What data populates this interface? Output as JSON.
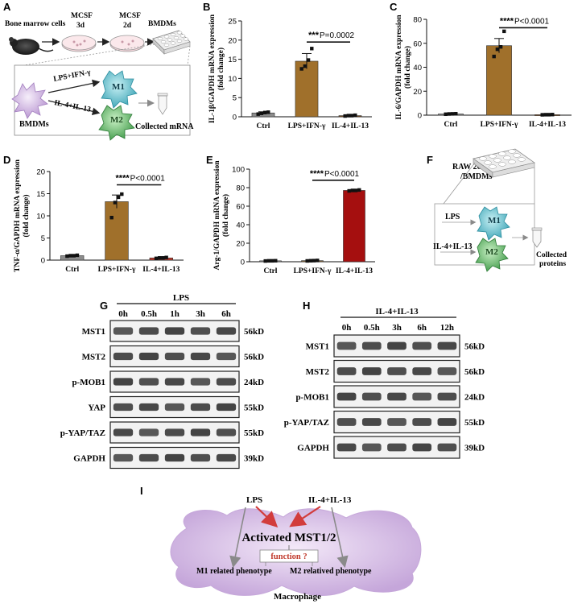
{
  "panel_letters": [
    "A",
    "B",
    "C",
    "D",
    "E",
    "F",
    "G",
    "H",
    "I"
  ],
  "panelA": {
    "bone_marrow_label": "Bone marrow cells",
    "mcsf1_top": "MCSF",
    "mcsf1_bottom": "3d",
    "mcsf2_top": "MCSF",
    "mcsf2_bottom": "2d",
    "bmdms_top": "BMDMs",
    "bmdms_side": "BMDMs",
    "lps_ifn": "LPS+IFN-γ",
    "il4_il13": "IL-4+IL-13",
    "m1": "M1",
    "m2": "M2",
    "collected": "Collected mRNA"
  },
  "panelF": {
    "title_line1": "RAW 264.7 cells",
    "title_line2": "/BMDMs",
    "lps": "LPS",
    "il4_il13": "IL-4+IL-13",
    "m1": "M1",
    "m2": "M2",
    "collected_line1": "Collected",
    "collected_line2": "proteins"
  },
  "chart_data": [
    {
      "panel": "B",
      "type": "bar",
      "categories": [
        "Ctrl",
        "LPS+IFN-γ",
        "IL-4+IL-13"
      ],
      "values": [
        1.0,
        14.5,
        0.3
      ],
      "errors": [
        0.3,
        2.0,
        0.1
      ],
      "points": [
        [
          0.7,
          0.9,
          1.1,
          1.2
        ],
        [
          12.5,
          13.2,
          14.8,
          17.8
        ],
        [
          0.2,
          0.3,
          0.3,
          0.4
        ]
      ],
      "colors": [
        "#8c8c8c",
        "#a0702b",
        "#7d4b1e"
      ],
      "ylabel": "IL-1β/GAPDH mRNA expression",
      "ylabel2": "(fold change)",
      "ylim": [
        0,
        25
      ],
      "yticks": [
        0,
        5,
        10,
        15,
        20,
        25
      ],
      "sig_stars": "***",
      "sig_text": "P=0.0002",
      "sig_from": 1,
      "sig_to": 2,
      "sig_y": 19.5
    },
    {
      "panel": "C",
      "type": "bar",
      "categories": [
        "Ctrl",
        "LPS+IFN-γ",
        "IL-4+IL-13"
      ],
      "values": [
        1.0,
        58.0,
        0.4
      ],
      "errors": [
        0.3,
        6.0,
        0.1
      ],
      "points": [
        [
          0.8,
          1.0,
          1.1,
          1.2
        ],
        [
          49,
          55,
          57,
          70
        ],
        [
          0.3,
          0.4,
          0.4,
          0.5
        ]
      ],
      "colors": [
        "#8c8c8c",
        "#a0702b",
        "#7d4b1e"
      ],
      "ylabel": "IL-6/GAPDH mRNA expression",
      "ylabel2": "(fold change)",
      "ylim": [
        0,
        80
      ],
      "yticks": [
        0,
        20,
        40,
        60,
        80
      ],
      "sig_stars": "****",
      "sig_text": "P<0.0001",
      "sig_from": 1,
      "sig_to": 2,
      "sig_y": 73
    },
    {
      "panel": "D",
      "type": "bar",
      "categories": [
        "Ctrl",
        "LPS+IFN-γ",
        "IL-4+IL-13"
      ],
      "values": [
        1.0,
        13.2,
        0.5
      ],
      "errors": [
        0.15,
        1.5,
        0.1
      ],
      "points": [
        [
          0.9,
          1.0,
          1.0,
          1.1
        ],
        [
          9.6,
          13.0,
          14.2,
          14.9
        ],
        [
          0.4,
          0.5,
          0.5,
          0.6
        ]
      ],
      "colors": [
        "#8c8c8c",
        "#a0702b",
        "#c0392b"
      ],
      "ylabel": "TNF-α/GAPDH mRNA expression",
      "ylabel2": "(fold change)",
      "ylim": [
        0,
        20
      ],
      "yticks": [
        0,
        5,
        10,
        15,
        20
      ],
      "sig_stars": "****",
      "sig_text": "P<0.0001",
      "sig_from": 1,
      "sig_to": 2,
      "sig_y": 17
    },
    {
      "panel": "E",
      "type": "bar",
      "categories": [
        "Ctrl",
        "LPS+IFN-γ",
        "IL-4+IL-13"
      ],
      "values": [
        1.0,
        1.2,
        77.0
      ],
      "errors": [
        0.2,
        0.3,
        0.8
      ],
      "points": [
        [
          0.8,
          1.0,
          1.0,
          1.1
        ],
        [
          0.9,
          1.1,
          1.2,
          1.4
        ],
        [
          76.5,
          77,
          77,
          77.5
        ]
      ],
      "colors": [
        "#8c8c8c",
        "#8a6a3a",
        "#a50f0f"
      ],
      "ylabel": "Arg-1/GAPDH mRNA expression",
      "ylabel2": "(fold change)",
      "ylim": [
        0,
        100
      ],
      "yticks": [
        0,
        20,
        40,
        60,
        80,
        100
      ],
      "sig_stars": "****",
      "sig_text": "P<0.0001",
      "sig_from": 1,
      "sig_to": 2,
      "sig_y": 88
    }
  ],
  "panelG": {
    "treatment": "LPS",
    "timepoints": [
      "0h",
      "0.5h",
      "1h",
      "3h",
      "6h"
    ],
    "rows": [
      {
        "name": "MST1",
        "kd": "56kD"
      },
      {
        "name": "MST2",
        "kd": "56kD"
      },
      {
        "name": "p-MOB1",
        "kd": "24kD"
      },
      {
        "name": "YAP",
        "kd": "55kD"
      },
      {
        "name": "p-YAP/TAZ",
        "kd": "55kD"
      },
      {
        "name": "GAPDH",
        "kd": "39kD"
      }
    ]
  },
  "panelH": {
    "treatment": "IL-4+IL-13",
    "timepoints": [
      "0h",
      "0.5h",
      "3h",
      "6h",
      "12h"
    ],
    "rows": [
      {
        "name": "MST1",
        "kd": "56kD"
      },
      {
        "name": "MST2",
        "kd": "56kD"
      },
      {
        "name": "p-MOB1",
        "kd": "24kD"
      },
      {
        "name": "p-YAP/TAZ",
        "kd": "55kD"
      },
      {
        "name": "GAPDH",
        "kd": "39kD"
      }
    ]
  },
  "panelI": {
    "lps": "LPS",
    "il4_il13": "IL-4+IL-13",
    "center": "Activated MST1/2",
    "question": "function ?",
    "m1_pheno": "M1 related phenotype",
    "m2_pheno": "M2 relatived phenotype",
    "macrophage": "Macrophage"
  },
  "colors": {
    "brown_bar": "#a0702b",
    "red_bar": "#a50f0f",
    "arrow_red": "#d23c3c",
    "cell_purple": "#cdb3dd",
    "m1_teal": "#4fb8c6",
    "m2_green": "#5cae5c"
  }
}
